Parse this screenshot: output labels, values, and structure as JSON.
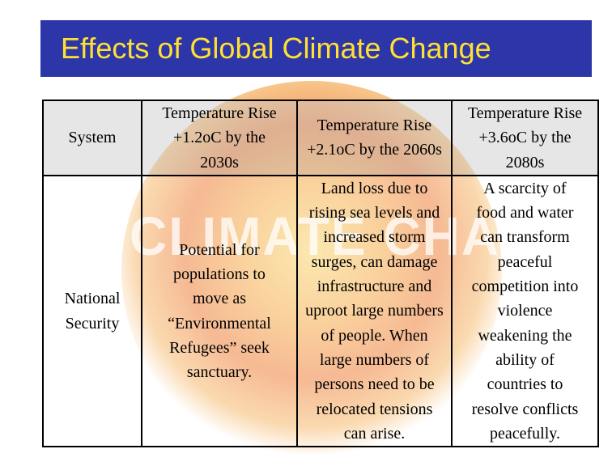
{
  "slide": {
    "title": "Effects of Global Climate Change",
    "background_word": "CLIMATE CHANGE"
  },
  "table": {
    "headers": [
      "System",
      "Temperature Rise\n+1.2oC by the\n2030s",
      "Temperature Rise\n+2.1oC by the 2060s",
      "Temperature Rise\n+3.6oC by the\n2080s"
    ],
    "rows": [
      [
        "National\nSecurity",
        "Potential for\npopulations to\nmove as\n“Environmental\nRefugees” seek\nsanctuary.",
        "Land loss due to\nrising sea levels and\nincreased storm\nsurges, can damage\ninfrastructure and\nuproot large numbers\nof people. When\nlarge numbers of\npersons need to be\nrelocated tensions\ncan arise.",
        "A scarcity of\nfood and water\ncan transform\npeaceful\ncompetition into\nviolence\nweakening the\nability of\ncountries to\nresolve conflicts\npeacefully."
      ]
    ]
  },
  "colors": {
    "title_bar": "#2c36a8",
    "title_text": "#ffe033"
  }
}
